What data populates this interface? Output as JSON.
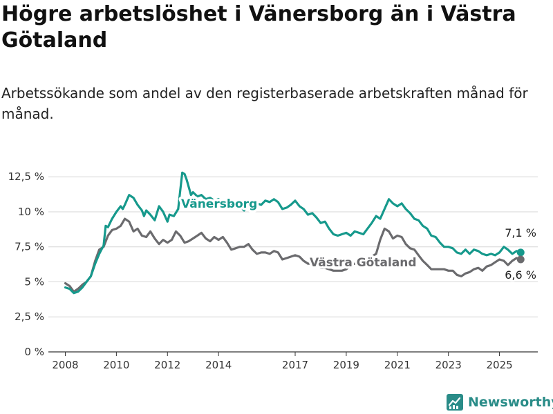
{
  "title": "Högre arbetslöshet i Vänersborg än i Västra Götaland",
  "subtitle": "Arbetssökande som andel av den registerbaserade arbetskraften månad för månad.",
  "brand": {
    "name": "Newsworthy",
    "color": "#2a8c88"
  },
  "chart_data": {
    "type": "line",
    "title": "Högre arbetslöshet i Vänersborg än i Västra Götaland",
    "subtitle": "Arbetssökande som andel av den registerbaserade arbetskraften månad för månad.",
    "xlabel": "",
    "ylabel": "",
    "ylim": [
      0,
      13.3
    ],
    "xlim": [
      2007.5,
      2026.5
    ],
    "y_ticks": [
      0,
      2.5,
      5,
      7.5,
      10,
      12.5
    ],
    "y_tick_labels": [
      "0 %",
      "2,5 %",
      "5 %",
      "7,5 %",
      "10 %",
      "12,5 %"
    ],
    "x_ticks": [
      2008,
      2010,
      2012,
      2014,
      2017,
      2019,
      2021,
      2023,
      2025
    ],
    "x_tick_labels": [
      "2008",
      "2010",
      "2012",
      "2014",
      "2017",
      "2019",
      "2021",
      "2023",
      "2025"
    ],
    "grid": "horizontal",
    "legend": "inline labels",
    "series": [
      {
        "name": "Vänersborg",
        "color": "#16998c",
        "end_label": "7,1 %",
        "points": [
          [
            2008.0,
            4.6
          ],
          [
            2008.17,
            4.5
          ],
          [
            2008.33,
            4.2
          ],
          [
            2008.5,
            4.3
          ],
          [
            2008.67,
            4.6
          ],
          [
            2008.83,
            5.0
          ],
          [
            2009.0,
            5.4
          ],
          [
            2009.17,
            6.3
          ],
          [
            2009.33,
            7.0
          ],
          [
            2009.5,
            7.6
          ],
          [
            2009.58,
            9.0
          ],
          [
            2009.67,
            8.9
          ],
          [
            2009.83,
            9.5
          ],
          [
            2010.0,
            10.0
          ],
          [
            2010.17,
            10.4
          ],
          [
            2010.25,
            10.2
          ],
          [
            2010.33,
            10.5
          ],
          [
            2010.5,
            11.2
          ],
          [
            2010.67,
            11.0
          ],
          [
            2010.83,
            10.5
          ],
          [
            2011.0,
            10.1
          ],
          [
            2011.08,
            9.7
          ],
          [
            2011.17,
            10.1
          ],
          [
            2011.33,
            9.8
          ],
          [
            2011.5,
            9.4
          ],
          [
            2011.67,
            10.4
          ],
          [
            2011.83,
            10.0
          ],
          [
            2012.0,
            9.3
          ],
          [
            2012.08,
            9.8
          ],
          [
            2012.25,
            9.7
          ],
          [
            2012.42,
            10.2
          ],
          [
            2012.5,
            11.5
          ],
          [
            2012.58,
            12.8
          ],
          [
            2012.67,
            12.7
          ],
          [
            2012.75,
            12.3
          ],
          [
            2012.83,
            11.8
          ],
          [
            2012.92,
            11.2
          ],
          [
            2013.0,
            11.4
          ],
          [
            2013.17,
            11.1
          ],
          [
            2013.33,
            11.2
          ],
          [
            2013.5,
            10.9
          ],
          [
            2013.67,
            11.0
          ],
          [
            2013.83,
            10.8
          ],
          [
            2014.0,
            10.9
          ],
          [
            2014.17,
            10.6
          ],
          [
            2014.33,
            10.5
          ],
          [
            2014.5,
            10.6
          ],
          [
            2014.67,
            10.3
          ],
          [
            2014.83,
            10.4
          ],
          [
            2015.0,
            10.1
          ],
          [
            2015.17,
            10.5
          ],
          [
            2015.33,
            10.3
          ],
          [
            2015.5,
            10.6
          ],
          [
            2015.67,
            10.5
          ],
          [
            2015.83,
            10.8
          ],
          [
            2016.0,
            10.7
          ],
          [
            2016.17,
            10.9
          ],
          [
            2016.33,
            10.7
          ],
          [
            2016.5,
            10.2
          ],
          [
            2016.67,
            10.3
          ],
          [
            2016.83,
            10.5
          ],
          [
            2017.0,
            10.8
          ],
          [
            2017.17,
            10.4
          ],
          [
            2017.33,
            10.2
          ],
          [
            2017.5,
            9.8
          ],
          [
            2017.67,
            9.9
          ],
          [
            2017.83,
            9.6
          ],
          [
            2018.0,
            9.2
          ],
          [
            2018.17,
            9.3
          ],
          [
            2018.33,
            8.8
          ],
          [
            2018.5,
            8.4
          ],
          [
            2018.67,
            8.3
          ],
          [
            2018.83,
            8.4
          ],
          [
            2019.0,
            8.5
          ],
          [
            2019.17,
            8.3
          ],
          [
            2019.33,
            8.6
          ],
          [
            2019.5,
            8.5
          ],
          [
            2019.67,
            8.4
          ],
          [
            2019.83,
            8.8
          ],
          [
            2020.0,
            9.2
          ],
          [
            2020.17,
            9.7
          ],
          [
            2020.33,
            9.5
          ],
          [
            2020.5,
            10.2
          ],
          [
            2020.67,
            10.9
          ],
          [
            2020.83,
            10.6
          ],
          [
            2021.0,
            10.4
          ],
          [
            2021.17,
            10.6
          ],
          [
            2021.33,
            10.2
          ],
          [
            2021.5,
            9.9
          ],
          [
            2021.67,
            9.5
          ],
          [
            2021.83,
            9.4
          ],
          [
            2022.0,
            9.0
          ],
          [
            2022.17,
            8.8
          ],
          [
            2022.33,
            8.3
          ],
          [
            2022.5,
            8.2
          ],
          [
            2022.67,
            7.8
          ],
          [
            2022.83,
            7.5
          ],
          [
            2023.0,
            7.5
          ],
          [
            2023.17,
            7.4
          ],
          [
            2023.33,
            7.1
          ],
          [
            2023.5,
            7.0
          ],
          [
            2023.67,
            7.3
          ],
          [
            2023.83,
            7.0
          ],
          [
            2024.0,
            7.3
          ],
          [
            2024.17,
            7.2
          ],
          [
            2024.33,
            7.0
          ],
          [
            2024.5,
            6.9
          ],
          [
            2024.67,
            7.0
          ],
          [
            2024.83,
            6.9
          ],
          [
            2025.0,
            7.1
          ],
          [
            2025.17,
            7.5
          ],
          [
            2025.33,
            7.3
          ],
          [
            2025.5,
            7.0
          ],
          [
            2025.67,
            7.2
          ],
          [
            2025.83,
            7.1
          ]
        ]
      },
      {
        "name": "Västra Götaland",
        "color": "#6b6b6e",
        "end_label": "6,6 %",
        "points": [
          [
            2008.0,
            4.9
          ],
          [
            2008.17,
            4.7
          ],
          [
            2008.33,
            4.3
          ],
          [
            2008.5,
            4.5
          ],
          [
            2008.67,
            4.8
          ],
          [
            2008.83,
            5.0
          ],
          [
            2009.0,
            5.4
          ],
          [
            2009.17,
            6.5
          ],
          [
            2009.33,
            7.3
          ],
          [
            2009.5,
            7.5
          ],
          [
            2009.67,
            8.3
          ],
          [
            2009.83,
            8.7
          ],
          [
            2010.0,
            8.8
          ],
          [
            2010.17,
            9.0
          ],
          [
            2010.33,
            9.5
          ],
          [
            2010.5,
            9.3
          ],
          [
            2010.67,
            8.6
          ],
          [
            2010.83,
            8.8
          ],
          [
            2011.0,
            8.3
          ],
          [
            2011.17,
            8.2
          ],
          [
            2011.33,
            8.6
          ],
          [
            2011.5,
            8.1
          ],
          [
            2011.67,
            7.7
          ],
          [
            2011.83,
            8.0
          ],
          [
            2012.0,
            7.8
          ],
          [
            2012.17,
            8.0
          ],
          [
            2012.33,
            8.6
          ],
          [
            2012.5,
            8.3
          ],
          [
            2012.67,
            7.8
          ],
          [
            2012.83,
            7.9
          ],
          [
            2013.0,
            8.1
          ],
          [
            2013.17,
            8.3
          ],
          [
            2013.33,
            8.5
          ],
          [
            2013.5,
            8.1
          ],
          [
            2013.67,
            7.9
          ],
          [
            2013.83,
            8.2
          ],
          [
            2014.0,
            8.0
          ],
          [
            2014.17,
            8.2
          ],
          [
            2014.33,
            7.8
          ],
          [
            2014.5,
            7.3
          ],
          [
            2014.67,
            7.4
          ],
          [
            2014.83,
            7.5
          ],
          [
            2015.0,
            7.5
          ],
          [
            2015.17,
            7.7
          ],
          [
            2015.33,
            7.3
          ],
          [
            2015.5,
            7.0
          ],
          [
            2015.67,
            7.1
          ],
          [
            2015.83,
            7.1
          ],
          [
            2016.0,
            7.0
          ],
          [
            2016.17,
            7.2
          ],
          [
            2016.33,
            7.1
          ],
          [
            2016.5,
            6.6
          ],
          [
            2016.67,
            6.7
          ],
          [
            2016.83,
            6.8
          ],
          [
            2017.0,
            6.9
          ],
          [
            2017.17,
            6.8
          ],
          [
            2017.33,
            6.5
          ],
          [
            2017.5,
            6.3
          ],
          [
            2017.67,
            6.3
          ],
          [
            2017.83,
            6.3
          ],
          [
            2018.0,
            6.0
          ],
          [
            2018.17,
            6.0
          ],
          [
            2018.33,
            5.9
          ],
          [
            2018.5,
            5.8
          ],
          [
            2018.67,
            5.8
          ],
          [
            2018.83,
            5.8
          ],
          [
            2019.0,
            5.9
          ],
          [
            2019.17,
            6.2
          ],
          [
            2019.33,
            6.3
          ],
          [
            2019.5,
            6.3
          ],
          [
            2019.67,
            6.4
          ],
          [
            2019.83,
            6.5
          ],
          [
            2020.0,
            6.8
          ],
          [
            2020.17,
            7.0
          ],
          [
            2020.33,
            8.0
          ],
          [
            2020.5,
            8.8
          ],
          [
            2020.67,
            8.6
          ],
          [
            2020.83,
            8.1
          ],
          [
            2021.0,
            8.3
          ],
          [
            2021.17,
            8.2
          ],
          [
            2021.33,
            7.7
          ],
          [
            2021.5,
            7.4
          ],
          [
            2021.67,
            7.3
          ],
          [
            2021.83,
            6.9
          ],
          [
            2022.0,
            6.5
          ],
          [
            2022.17,
            6.2
          ],
          [
            2022.33,
            5.9
          ],
          [
            2022.5,
            5.9
          ],
          [
            2022.67,
            5.9
          ],
          [
            2022.83,
            5.9
          ],
          [
            2023.0,
            5.8
          ],
          [
            2023.17,
            5.8
          ],
          [
            2023.33,
            5.5
          ],
          [
            2023.5,
            5.4
          ],
          [
            2023.67,
            5.6
          ],
          [
            2023.83,
            5.7
          ],
          [
            2024.0,
            5.9
          ],
          [
            2024.17,
            6.0
          ],
          [
            2024.33,
            5.8
          ],
          [
            2024.5,
            6.1
          ],
          [
            2024.67,
            6.2
          ],
          [
            2024.83,
            6.4
          ],
          [
            2025.0,
            6.6
          ],
          [
            2025.17,
            6.5
          ],
          [
            2025.33,
            6.2
          ],
          [
            2025.5,
            6.5
          ],
          [
            2025.67,
            6.7
          ],
          [
            2025.83,
            6.6
          ]
        ]
      }
    ]
  }
}
